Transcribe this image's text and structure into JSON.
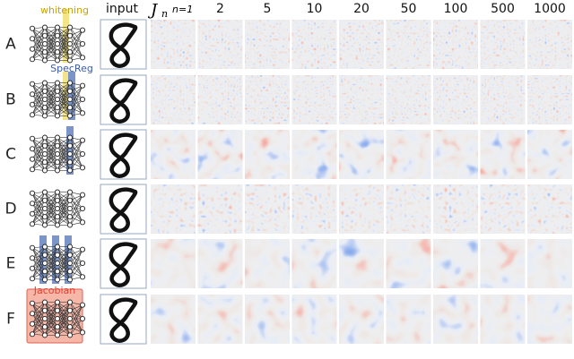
{
  "header": {
    "input": "input",
    "symbol": "J",
    "subscript": "n",
    "first": "n=1",
    "columns": [
      "2",
      "5",
      "10",
      "20",
      "50",
      "100",
      "500",
      "1000"
    ]
  },
  "row_labels": [
    "A",
    "B",
    "C",
    "D",
    "E",
    "F"
  ],
  "annotations": {
    "whitening": "whitening",
    "specreg": "SpecReg",
    "jacobian": "Jacobian"
  }
}
